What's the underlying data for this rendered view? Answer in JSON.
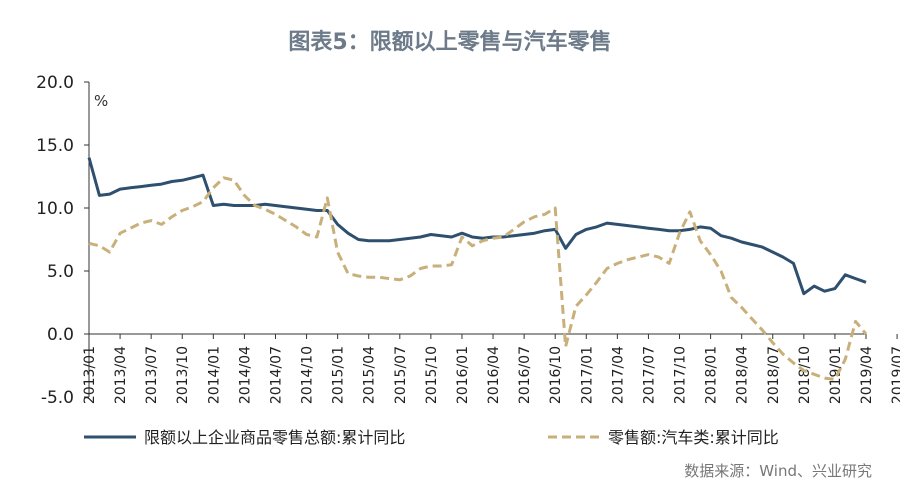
{
  "chart_data": {
    "type": "line",
    "title": "图表5：限额以上零售与汽车零售",
    "unit_label": "%",
    "ylim": [
      -5,
      20
    ],
    "y_ticks": [
      "20.0",
      "15.0",
      "10.0",
      "5.0",
      "0.0",
      "-5.0"
    ],
    "x_ticks": [
      "2013/01",
      "2013/04",
      "2013/07",
      "2013/10",
      "2014/01",
      "2014/04",
      "2014/07",
      "2014/10",
      "2015/01",
      "2015/04",
      "2015/07",
      "2015/10",
      "2016/01",
      "2016/04",
      "2016/07",
      "2016/10",
      "2017/01",
      "2017/04",
      "2017/07",
      "2017/10",
      "2018/01",
      "2018/04",
      "2018/07",
      "2018/10",
      "2019/01",
      "2019/04",
      "2019/07"
    ],
    "series": [
      {
        "name": "限额以上企业商品零售总额:累计同比",
        "color": "#2e4f6e",
        "style": "solid",
        "values": [
          14.0,
          11.0,
          11.1,
          11.5,
          11.6,
          11.7,
          11.8,
          11.9,
          12.1,
          12.2,
          12.4,
          12.6,
          10.2,
          10.3,
          10.2,
          10.2,
          10.2,
          10.3,
          10.2,
          10.1,
          10.0,
          9.9,
          9.8,
          9.8,
          8.7,
          8.0,
          7.5,
          7.4,
          7.4,
          7.4,
          7.5,
          7.6,
          7.7,
          7.9,
          7.8,
          7.7,
          8.0,
          7.7,
          7.6,
          7.7,
          7.7,
          7.8,
          7.9,
          8.0,
          8.2,
          8.3,
          6.8,
          7.9,
          8.3,
          8.5,
          8.8,
          8.7,
          8.6,
          8.5,
          8.4,
          8.3,
          8.2,
          8.2,
          8.3,
          8.5,
          8.4,
          7.8,
          7.6,
          7.3,
          7.1,
          6.9,
          6.5,
          6.1,
          5.6,
          3.2,
          3.8,
          3.4,
          3.6,
          4.7,
          4.4,
          4.1
        ]
      },
      {
        "name": "零售额:汽车类:累计同比",
        "color": "#c9b07a",
        "style": "dashed",
        "values": [
          7.2,
          7.0,
          6.5,
          8.0,
          8.4,
          8.8,
          9.0,
          8.7,
          9.3,
          9.8,
          10.1,
          10.5,
          11.6,
          12.4,
          12.2,
          11.0,
          10.2,
          9.9,
          9.5,
          9.0,
          8.5,
          7.9,
          7.7,
          10.8,
          6.5,
          4.8,
          4.6,
          4.5,
          4.5,
          4.4,
          4.3,
          4.6,
          5.2,
          5.4,
          5.4,
          5.5,
          7.7,
          7.0,
          7.4,
          7.6,
          7.7,
          8.3,
          8.9,
          9.3,
          9.5,
          10.0,
          -1.0,
          2.2,
          3.1,
          4.1,
          5.2,
          5.6,
          5.9,
          6.1,
          6.3,
          6.1,
          5.6,
          8.0,
          9.7,
          7.4,
          6.3,
          5.0,
          2.9,
          2.1,
          1.2,
          0.3,
          -0.7,
          -1.6,
          -2.3,
          -2.9,
          -3.2,
          -3.5,
          -3.6,
          -2.0,
          1.0,
          0.0
        ]
      }
    ],
    "legend_position": "bottom"
  },
  "source_note": "数据来源：Wind、兴业研究"
}
